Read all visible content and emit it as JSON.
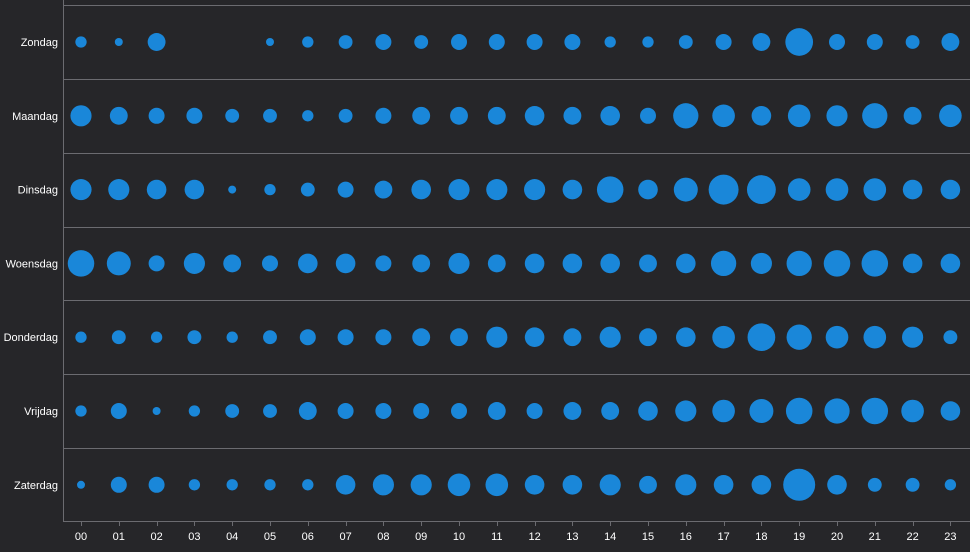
{
  "chart_data": {
    "type": "scatter",
    "days": [
      "Zondag",
      "Maandag",
      "Dinsdag",
      "Woensdag",
      "Donderdag",
      "Vrijdag",
      "Zaterdag"
    ],
    "hours": [
      "00",
      "01",
      "02",
      "03",
      "04",
      "05",
      "06",
      "07",
      "08",
      "09",
      "10",
      "11",
      "12",
      "13",
      "14",
      "15",
      "16",
      "17",
      "18",
      "19",
      "20",
      "21",
      "22",
      "23"
    ],
    "values": [
      [
        2,
        1,
        5,
        0,
        0,
        1,
        2,
        3,
        4,
        3,
        4,
        4,
        4,
        4,
        2,
        2,
        3,
        4,
        5,
        12,
        4,
        4,
        3,
        5
      ],
      [
        7,
        5,
        4,
        4,
        3,
        3,
        2,
        3,
        4,
        5,
        5,
        5,
        6,
        5,
        6,
        4,
        10,
        8,
        6,
        8,
        7,
        10,
        5,
        8
      ],
      [
        7,
        7,
        6,
        6,
        1,
        2,
        3,
        4,
        5,
        6,
        7,
        7,
        7,
        6,
        11,
        6,
        9,
        14,
        13,
        8,
        8,
        8,
        6,
        6
      ],
      [
        11,
        9,
        4,
        7,
        5,
        4,
        6,
        6,
        4,
        5,
        7,
        5,
        6,
        6,
        6,
        5,
        6,
        10,
        7,
        10,
        11,
        11,
        6,
        6
      ],
      [
        2,
        3,
        2,
        3,
        2,
        3,
        4,
        4,
        4,
        5,
        5,
        7,
        6,
        5,
        7,
        5,
        6,
        8,
        12,
        10,
        8,
        8,
        7,
        3
      ],
      [
        2,
        4,
        1,
        2,
        3,
        3,
        5,
        4,
        4,
        4,
        4,
        5,
        4,
        5,
        5,
        6,
        7,
        8,
        9,
        11,
        10,
        11,
        8,
        6
      ],
      [
        1,
        4,
        4,
        2,
        2,
        2,
        2,
        6,
        7,
        7,
        8,
        8,
        6,
        6,
        7,
        5,
        7,
        6,
        6,
        16,
        6,
        3,
        3,
        2
      ]
    ],
    "marker_color": "#1a87d9",
    "background": "#262629",
    "grid": true
  }
}
